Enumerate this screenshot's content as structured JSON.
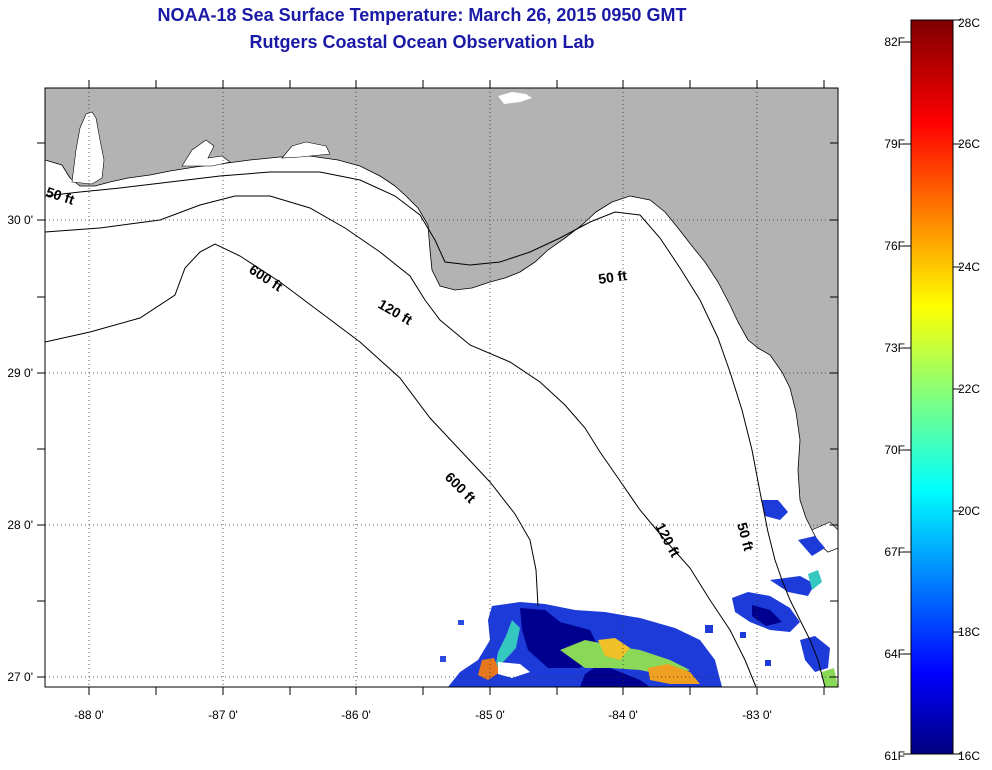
{
  "title": {
    "line1": "NOAA-18 Sea Surface Temperature:  March 26, 2015 0950 GMT",
    "line2": "Rutgers Coastal Ocean Observation Lab"
  },
  "map": {
    "colors": {
      "land": "#b3b3b3",
      "sea": "#ffffff",
      "title": "#1a1aa6"
    },
    "lat_ticks": [
      {
        "value": 30,
        "label": "30 0'"
      },
      {
        "value": 29,
        "label": "29 0'"
      },
      {
        "value": 28,
        "label": "28 0'"
      },
      {
        "value": 27,
        "label": "27 0'"
      }
    ],
    "lon_ticks": [
      {
        "value": -88,
        "label": "-88 0'"
      },
      {
        "value": -87,
        "label": "-87 0'"
      },
      {
        "value": -86,
        "label": "-86 0'"
      },
      {
        "value": -85,
        "label": "-85 0'"
      },
      {
        "value": -84,
        "label": "-84 0'"
      },
      {
        "value": -83,
        "label": "-83 0'"
      }
    ],
    "contour_labels": {
      "c50a": "50 ft",
      "c600a": "600 ft",
      "c120a": "120 ft",
      "c50b": "50 ft",
      "c600b": "600 ft",
      "c120b": "120 ft",
      "c50c": "50 ft"
    }
  },
  "colorbar": {
    "range_c": [
      16,
      28
    ],
    "fahrenheit_labels": [
      "82F",
      "79F",
      "76F",
      "73F",
      "70F",
      "67F",
      "64F",
      "61F"
    ],
    "celsius_labels": [
      "28C",
      "26C",
      "24C",
      "22C",
      "20C",
      "18C",
      "16C"
    ]
  }
}
